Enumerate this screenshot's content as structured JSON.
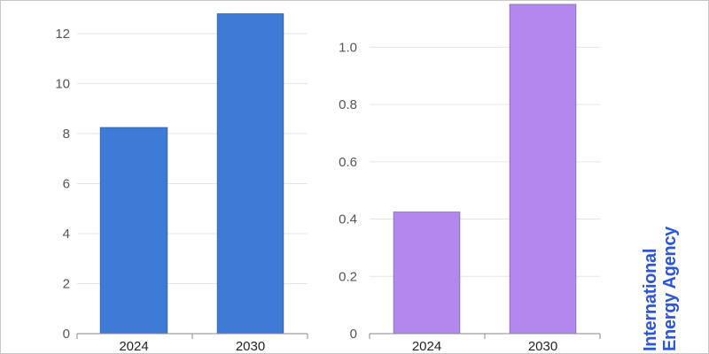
{
  "chart_data": [
    {
      "type": "bar",
      "categories": [
        "2024",
        "2030"
      ],
      "values": [
        8.25,
        12.8
      ],
      "ylim": [
        0,
        12.6
      ],
      "yticks": [
        0,
        2,
        4,
        6,
        8,
        10,
        12
      ],
      "ytick_labels": [
        "0",
        "2",
        "4",
        "6",
        "8",
        "10",
        "12"
      ],
      "color": "#3d7bd6",
      "grid": true
    },
    {
      "type": "bar",
      "categories": [
        "2024",
        "2030"
      ],
      "values": [
        0.425,
        1.15
      ],
      "ylim": [
        0,
        1.1
      ],
      "yticks": [
        0,
        0.2,
        0.4,
        0.6,
        0.8,
        1.0
      ],
      "ytick_labels": [
        "0",
        "0.2",
        "0.4",
        "0.6",
        "0.8",
        "1.0"
      ],
      "color": "#b388ee",
      "grid": true
    }
  ],
  "logo": {
    "line1": "International",
    "line2": "Energy Agency",
    "color": "#2d55d6"
  }
}
